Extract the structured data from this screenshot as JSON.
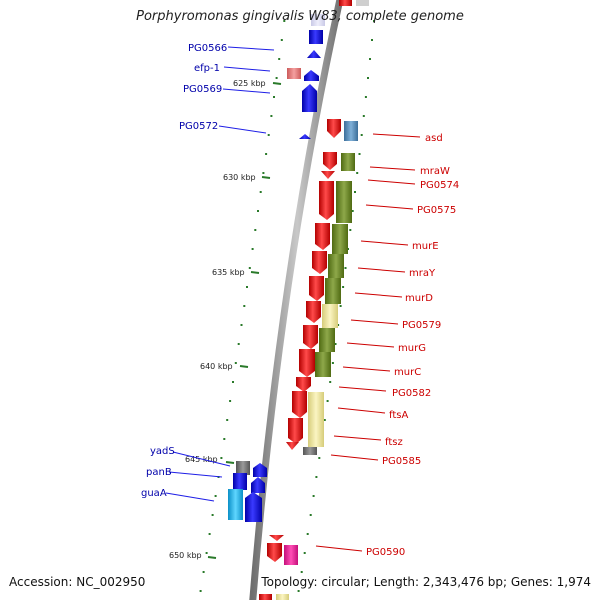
{
  "title": "Porphyromonas gingivalis W83, complete genome",
  "accession": "Accession: NC_002950",
  "topology": "Topology: circular; Length: 2,343,476 bp; Genes: 1,974",
  "colors": {
    "backbone": "#999999",
    "forward_gene": "#e61e1e",
    "reverse_gene": "#1e1ee6",
    "forward_label": "#cc0000",
    "reverse_label": "#0000aa",
    "tick": "#2a7a2a"
  },
  "kbp_labels": [
    "625 kbp",
    "630 kbp",
    "635 kbp",
    "640 kbp",
    "645 kbp",
    "650 kbp"
  ],
  "reverse_genes": [
    "PG0566",
    "efp-1",
    "PG0569",
    "PG0572",
    "yadS",
    "panB",
    "guaA"
  ],
  "forward_genes": [
    "asd",
    "mraW",
    "PG0574",
    "PG0575",
    "murE",
    "mraY",
    "murD",
    "PG0579",
    "murG",
    "murC",
    "PG0582",
    "ftsA",
    "ftsz",
    "PG0585",
    "PG0590"
  ]
}
